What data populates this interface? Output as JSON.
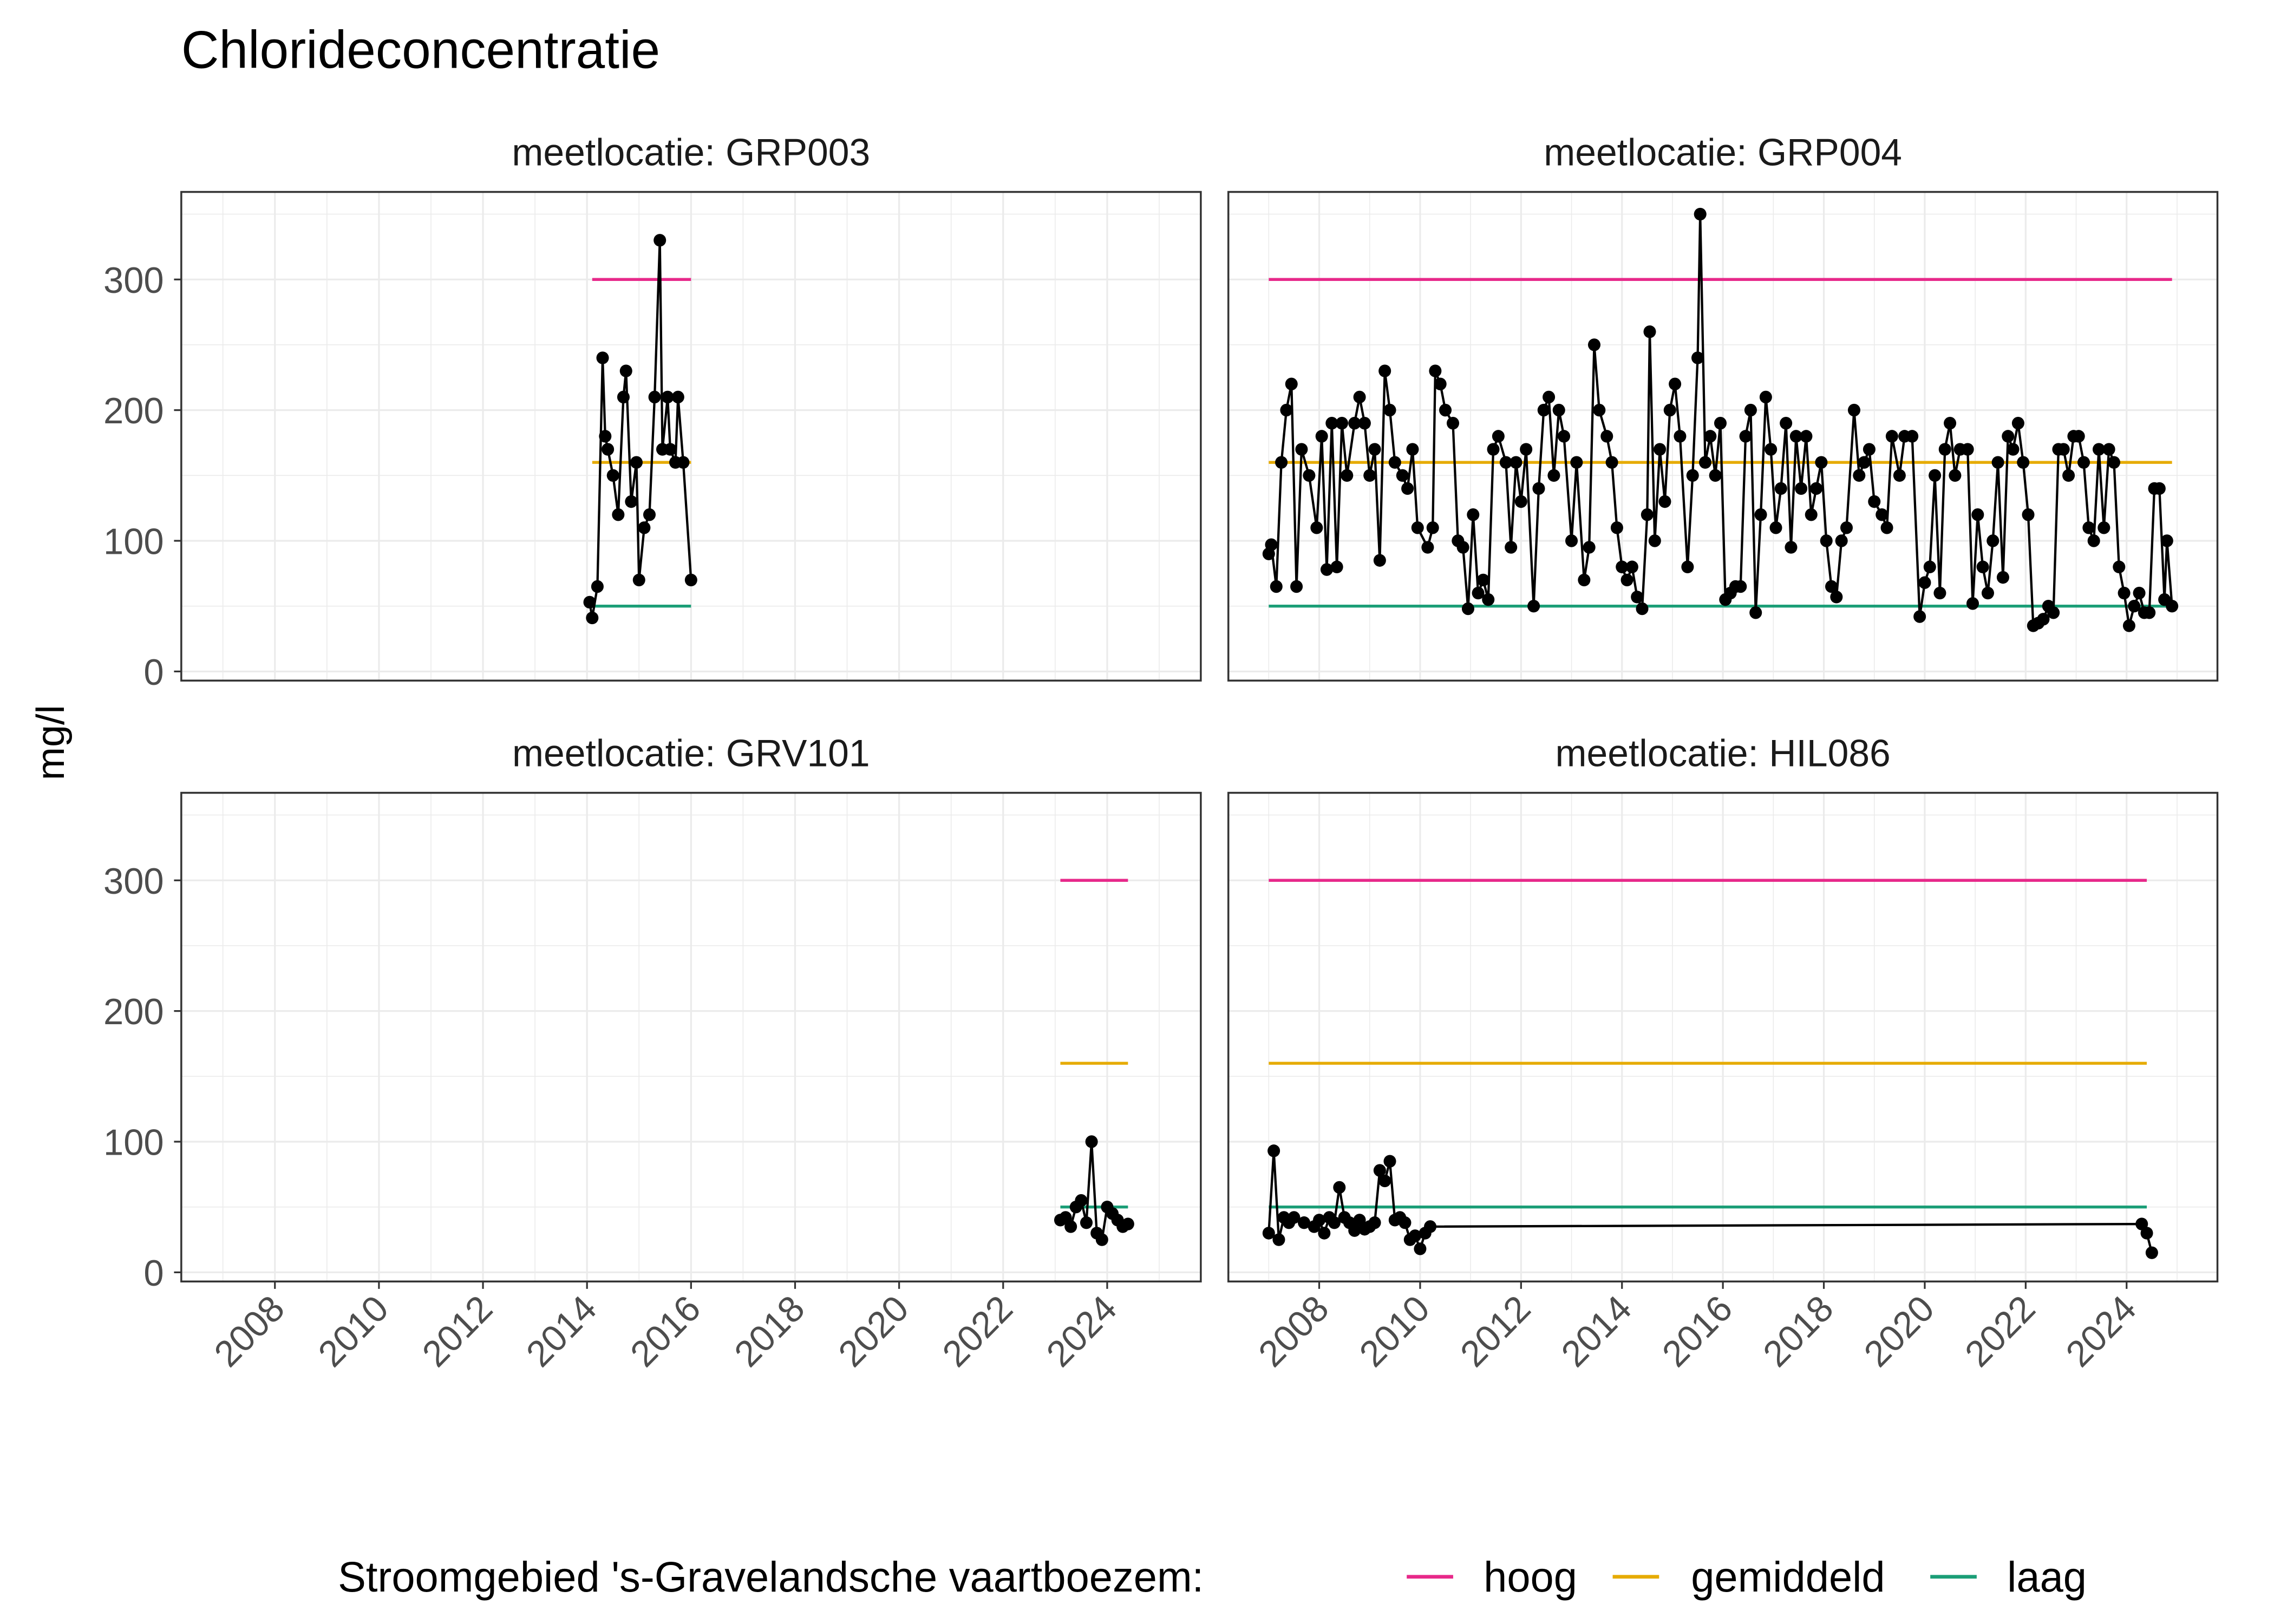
{
  "chart_data": {
    "type": "line",
    "title": "Chlorideconcentratie",
    "ylabel": "mg/l",
    "xlabel": "",
    "xlim": [
      2006.2,
      2025.8
    ],
    "ylim": [
      -7,
      367
    ],
    "x_ticks": [
      "2008",
      "2010",
      "2012",
      "2014",
      "2016",
      "2018",
      "2020",
      "2022",
      "2024"
    ],
    "y_ticks": [
      "0",
      "100",
      "200",
      "300"
    ],
    "grid": true,
    "legend": {
      "title": "Stroomgebied 's-Gravelandsche vaartboezem:",
      "position": "bottom",
      "entries": [
        {
          "name": "hoog",
          "color": "#e7298a",
          "value": 300
        },
        {
          "name": "gemiddeld",
          "color": "#e6ab02",
          "value": 160
        },
        {
          "name": "laag",
          "color": "#1b9e77",
          "value": 50
        }
      ]
    },
    "panels": [
      {
        "label": "meetlocatie: GRP003",
        "threshold_range": [
          2014.1,
          2016.0
        ],
        "points": [
          [
            2014.05,
            53
          ],
          [
            2014.1,
            41
          ],
          [
            2014.2,
            65
          ],
          [
            2014.3,
            240
          ],
          [
            2014.35,
            180
          ],
          [
            2014.4,
            170
          ],
          [
            2014.5,
            150
          ],
          [
            2014.6,
            120
          ],
          [
            2014.7,
            210
          ],
          [
            2014.75,
            230
          ],
          [
            2014.85,
            130
          ],
          [
            2014.95,
            160
          ],
          [
            2015.0,
            70
          ],
          [
            2015.1,
            110
          ],
          [
            2015.2,
            120
          ],
          [
            2015.3,
            210
          ],
          [
            2015.4,
            330
          ],
          [
            2015.45,
            170
          ],
          [
            2015.55,
            210
          ],
          [
            2015.6,
            170
          ],
          [
            2015.7,
            160
          ],
          [
            2015.75,
            210
          ],
          [
            2015.85,
            160
          ],
          [
            2016.0,
            70
          ]
        ]
      },
      {
        "label": "meetlocatie: GRP004",
        "threshold_range": [
          2007.0,
          2024.9
        ],
        "points": [
          [
            2007.0,
            90
          ],
          [
            2007.05,
            97
          ],
          [
            2007.15,
            65
          ],
          [
            2007.25,
            160
          ],
          [
            2007.35,
            200
          ],
          [
            2007.45,
            220
          ],
          [
            2007.55,
            65
          ],
          [
            2007.65,
            170
          ],
          [
            2007.8,
            150
          ],
          [
            2007.95,
            110
          ],
          [
            2008.05,
            180
          ],
          [
            2008.15,
            78
          ],
          [
            2008.25,
            190
          ],
          [
            2008.35,
            80
          ],
          [
            2008.45,
            190
          ],
          [
            2008.55,
            150
          ],
          [
            2008.7,
            190
          ],
          [
            2008.8,
            210
          ],
          [
            2008.9,
            190
          ],
          [
            2009.0,
            150
          ],
          [
            2009.1,
            170
          ],
          [
            2009.2,
            85
          ],
          [
            2009.3,
            230
          ],
          [
            2009.4,
            200
          ],
          [
            2009.5,
            160
          ],
          [
            2009.65,
            150
          ],
          [
            2009.75,
            140
          ],
          [
            2009.85,
            170
          ],
          [
            2009.95,
            110
          ],
          [
            2010.15,
            95
          ],
          [
            2010.25,
            110
          ],
          [
            2010.3,
            230
          ],
          [
            2010.4,
            220
          ],
          [
            2010.5,
            200
          ],
          [
            2010.65,
            190
          ],
          [
            2010.75,
            100
          ],
          [
            2010.85,
            95
          ],
          [
            2010.95,
            48
          ],
          [
            2011.05,
            120
          ],
          [
            2011.15,
            60
          ],
          [
            2011.25,
            70
          ],
          [
            2011.35,
            55
          ],
          [
            2011.45,
            170
          ],
          [
            2011.55,
            180
          ],
          [
            2011.7,
            160
          ],
          [
            2011.8,
            95
          ],
          [
            2011.9,
            160
          ],
          [
            2012.0,
            130
          ],
          [
            2012.1,
            170
          ],
          [
            2012.25,
            50
          ],
          [
            2012.35,
            140
          ],
          [
            2012.45,
            200
          ],
          [
            2012.55,
            210
          ],
          [
            2012.65,
            150
          ],
          [
            2012.75,
            200
          ],
          [
            2012.85,
            180
          ],
          [
            2013.0,
            100
          ],
          [
            2013.1,
            160
          ],
          [
            2013.25,
            70
          ],
          [
            2013.35,
            95
          ],
          [
            2013.45,
            250
          ],
          [
            2013.55,
            200
          ],
          [
            2013.7,
            180
          ],
          [
            2013.8,
            160
          ],
          [
            2013.9,
            110
          ],
          [
            2014.0,
            80
          ],
          [
            2014.1,
            70
          ],
          [
            2014.2,
            80
          ],
          [
            2014.3,
            57
          ],
          [
            2014.4,
            48
          ],
          [
            2014.5,
            120
          ],
          [
            2014.55,
            260
          ],
          [
            2014.65,
            100
          ],
          [
            2014.75,
            170
          ],
          [
            2014.85,
            130
          ],
          [
            2014.95,
            200
          ],
          [
            2015.05,
            220
          ],
          [
            2015.15,
            180
          ],
          [
            2015.3,
            80
          ],
          [
            2015.4,
            150
          ],
          [
            2015.5,
            240
          ],
          [
            2015.55,
            350
          ],
          [
            2015.65,
            160
          ],
          [
            2015.75,
            180
          ],
          [
            2015.85,
            150
          ],
          [
            2015.95,
            190
          ],
          [
            2016.05,
            55
          ],
          [
            2016.15,
            60
          ],
          [
            2016.25,
            65
          ],
          [
            2016.35,
            65
          ],
          [
            2016.45,
            180
          ],
          [
            2016.55,
            200
          ],
          [
            2016.65,
            45
          ],
          [
            2016.75,
            120
          ],
          [
            2016.85,
            210
          ],
          [
            2016.95,
            170
          ],
          [
            2017.05,
            110
          ],
          [
            2017.15,
            140
          ],
          [
            2017.25,
            190
          ],
          [
            2017.35,
            95
          ],
          [
            2017.45,
            180
          ],
          [
            2017.55,
            140
          ],
          [
            2017.65,
            180
          ],
          [
            2017.75,
            120
          ],
          [
            2017.85,
            140
          ],
          [
            2017.95,
            160
          ],
          [
            2018.05,
            100
          ],
          [
            2018.15,
            65
          ],
          [
            2018.25,
            57
          ],
          [
            2018.35,
            100
          ],
          [
            2018.45,
            110
          ],
          [
            2018.6,
            200
          ],
          [
            2018.7,
            150
          ],
          [
            2018.8,
            160
          ],
          [
            2018.9,
            170
          ],
          [
            2019.0,
            130
          ],
          [
            2019.15,
            120
          ],
          [
            2019.25,
            110
          ],
          [
            2019.35,
            180
          ],
          [
            2019.5,
            150
          ],
          [
            2019.6,
            180
          ],
          [
            2019.75,
            180
          ],
          [
            2019.9,
            42
          ],
          [
            2020.0,
            68
          ],
          [
            2020.1,
            80
          ],
          [
            2020.2,
            150
          ],
          [
            2020.3,
            60
          ],
          [
            2020.4,
            170
          ],
          [
            2020.5,
            190
          ],
          [
            2020.6,
            150
          ],
          [
            2020.7,
            170
          ],
          [
            2020.85,
            170
          ],
          [
            2020.95,
            52
          ],
          [
            2021.05,
            120
          ],
          [
            2021.15,
            80
          ],
          [
            2021.25,
            60
          ],
          [
            2021.35,
            100
          ],
          [
            2021.45,
            160
          ],
          [
            2021.55,
            72
          ],
          [
            2021.65,
            180
          ],
          [
            2021.75,
            170
          ],
          [
            2021.85,
            190
          ],
          [
            2021.95,
            160
          ],
          [
            2022.05,
            120
          ],
          [
            2022.15,
            35
          ],
          [
            2022.25,
            37
          ],
          [
            2022.35,
            40
          ],
          [
            2022.45,
            50
          ],
          [
            2022.55,
            45
          ],
          [
            2022.65,
            170
          ],
          [
            2022.75,
            170
          ],
          [
            2022.85,
            150
          ],
          [
            2022.95,
            180
          ],
          [
            2023.05,
            180
          ],
          [
            2023.15,
            160
          ],
          [
            2023.25,
            110
          ],
          [
            2023.35,
            100
          ],
          [
            2023.45,
            170
          ],
          [
            2023.55,
            110
          ],
          [
            2023.65,
            170
          ],
          [
            2023.75,
            160
          ],
          [
            2023.85,
            80
          ],
          [
            2023.95,
            60
          ],
          [
            2024.05,
            35
          ],
          [
            2024.15,
            50
          ],
          [
            2024.25,
            60
          ],
          [
            2024.35,
            45
          ],
          [
            2024.45,
            45
          ],
          [
            2024.55,
            140
          ],
          [
            2024.65,
            140
          ],
          [
            2024.75,
            55
          ],
          [
            2024.8,
            100
          ],
          [
            2024.9,
            50
          ]
        ]
      },
      {
        "label": "meetlocatie: GRV101",
        "threshold_range": [
          2023.1,
          2024.4
        ],
        "points": [
          [
            2023.1,
            40
          ],
          [
            2023.2,
            42
          ],
          [
            2023.3,
            35
          ],
          [
            2023.4,
            50
          ],
          [
            2023.5,
            55
          ],
          [
            2023.6,
            38
          ],
          [
            2023.7,
            100
          ],
          [
            2023.8,
            30
          ],
          [
            2023.9,
            25
          ],
          [
            2024.0,
            50
          ],
          [
            2024.1,
            45
          ],
          [
            2024.2,
            40
          ],
          [
            2024.3,
            35
          ],
          [
            2024.4,
            37
          ]
        ]
      },
      {
        "label": "meetlocatie: HIL086",
        "threshold_range": [
          2007.0,
          2024.4
        ],
        "points": [
          [
            2007.0,
            30
          ],
          [
            2007.1,
            93
          ],
          [
            2007.2,
            25
          ],
          [
            2007.3,
            42
          ],
          [
            2007.4,
            38
          ],
          [
            2007.5,
            42
          ],
          [
            2007.7,
            38
          ],
          [
            2007.9,
            35
          ],
          [
            2008.0,
            40
          ],
          [
            2008.1,
            30
          ],
          [
            2008.2,
            42
          ],
          [
            2008.3,
            38
          ],
          [
            2008.4,
            65
          ],
          [
            2008.5,
            42
          ],
          [
            2008.6,
            38
          ],
          [
            2008.7,
            32
          ],
          [
            2008.8,
            40
          ],
          [
            2008.9,
            33
          ],
          [
            2009.0,
            35
          ],
          [
            2009.1,
            38
          ],
          [
            2009.2,
            78
          ],
          [
            2009.3,
            70
          ],
          [
            2009.4,
            85
          ],
          [
            2009.5,
            40
          ],
          [
            2009.6,
            42
          ],
          [
            2009.7,
            38
          ],
          [
            2009.8,
            25
          ],
          [
            2009.9,
            28
          ],
          [
            2010.0,
            18
          ],
          [
            2010.1,
            30
          ],
          [
            2010.2,
            35
          ],
          [
            2024.3,
            37
          ],
          [
            2024.4,
            30
          ],
          [
            2024.5,
            15
          ]
        ]
      }
    ]
  }
}
